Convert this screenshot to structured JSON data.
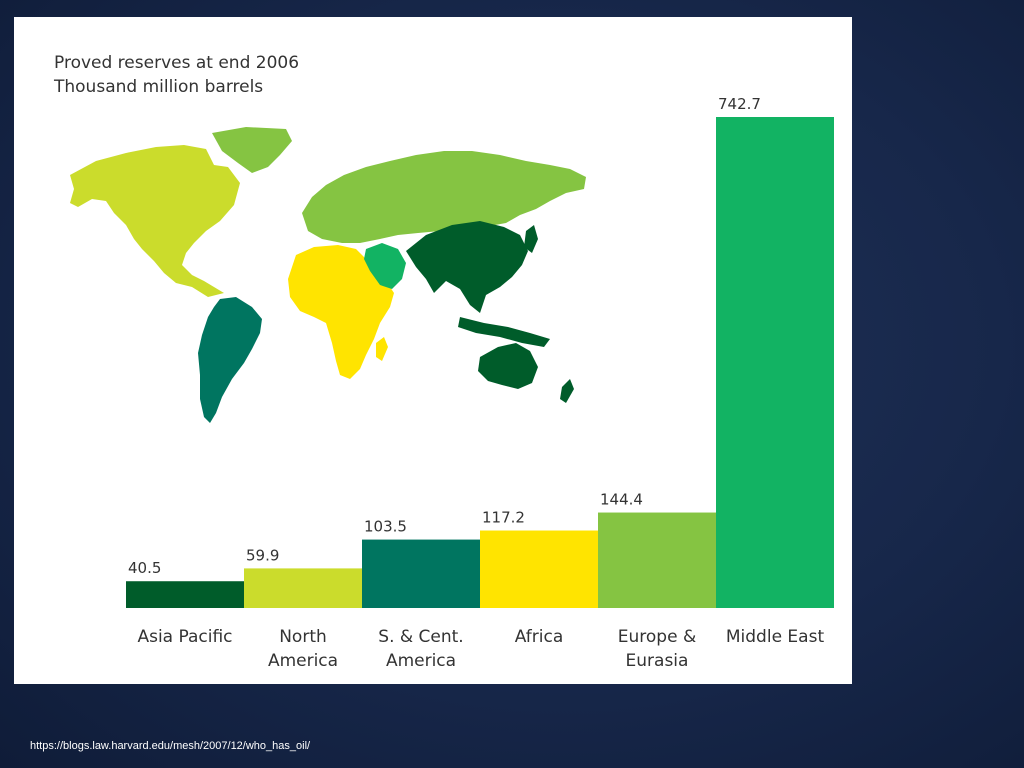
{
  "chart_data": {
    "type": "bar",
    "title": "Proved reserves at end 2006",
    "subtitle": "Thousand million barrels",
    "categories": [
      [
        "Asia Pacific"
      ],
      [
        "North",
        "America"
      ],
      [
        "S. & Cent.",
        "America"
      ],
      [
        "Africa"
      ],
      [
        "Europe &",
        "Eurasia"
      ],
      [
        "Middle East"
      ]
    ],
    "values": [
      40.5,
      59.9,
      103.5,
      117.2,
      144.4,
      742.7
    ],
    "value_labels": [
      "40.5",
      "59.9",
      "103.5",
      "117.2",
      "144.4",
      "742.7"
    ],
    "colors": [
      "#005c2a",
      "#cbdc2c",
      "#007560",
      "#ffe400",
      "#85c442",
      "#12b363"
    ],
    "ylim": [
      0,
      742.7
    ],
    "grid": false,
    "legend": "none"
  },
  "map": {
    "region_colors": {
      "north_america": "#cbdc2c",
      "south_central_america": "#007560",
      "africa": "#ffe400",
      "europe_eurasia": "#85c442",
      "middle_east": "#12b363",
      "asia_pacific": "#005c2a"
    }
  },
  "footer": {
    "source_url": "https://blogs.law.harvard.edu/mesh/2007/12/who_has_oil/"
  }
}
